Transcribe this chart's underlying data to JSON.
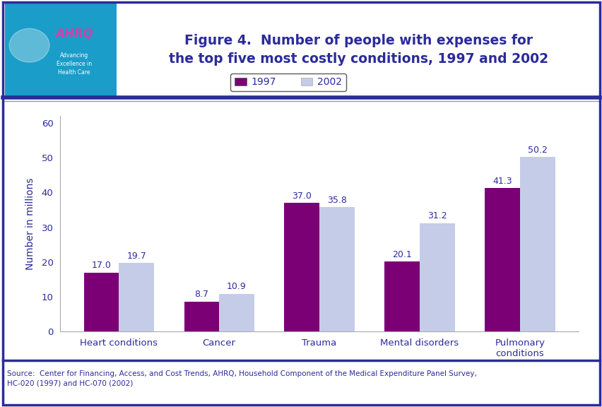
{
  "title_line1": "Figure 4.  Number of people with expenses for",
  "title_line2": "the top five most costly conditions, 1997 and 2002",
  "categories": [
    "Heart conditions",
    "Cancer",
    "Trauma",
    "Mental disorders",
    "Pulmonary\nconditions"
  ],
  "values_1997": [
    17.0,
    8.7,
    37.0,
    20.1,
    41.3
  ],
  "values_2002": [
    19.7,
    10.9,
    35.8,
    31.2,
    50.2
  ],
  "color_1997": "#7b0075",
  "color_2002": "#c5cce8",
  "ylabel": "Number in millions",
  "ylim": [
    0,
    62
  ],
  "yticks": [
    0,
    10,
    20,
    30,
    40,
    50,
    60
  ],
  "legend_1997": "1997",
  "legend_2002": "2002",
  "source_text": "Source:  Center for Financing, Access, and Cost Trends, AHRQ, Household Component of the Medical Expenditure Panel Survey,\nHC-020 (1997) and HC-070 (2002)",
  "bar_width": 0.35,
  "title_color": "#2b2b9b",
  "axis_label_color": "#2b2b9b",
  "tick_label_color": "#2b2b9b",
  "value_label_color": "#2b2b9b",
  "outer_border_color": "#2b2b9b",
  "divider_color": "#2b2b9b",
  "header_bg": "#ffffff",
  "plot_bg": "#ffffff",
  "logo_bg": "#1a9dc8",
  "logo_text_color": "#ffffff",
  "source_color": "#2b2b9b",
  "background_color": "#ffffff"
}
